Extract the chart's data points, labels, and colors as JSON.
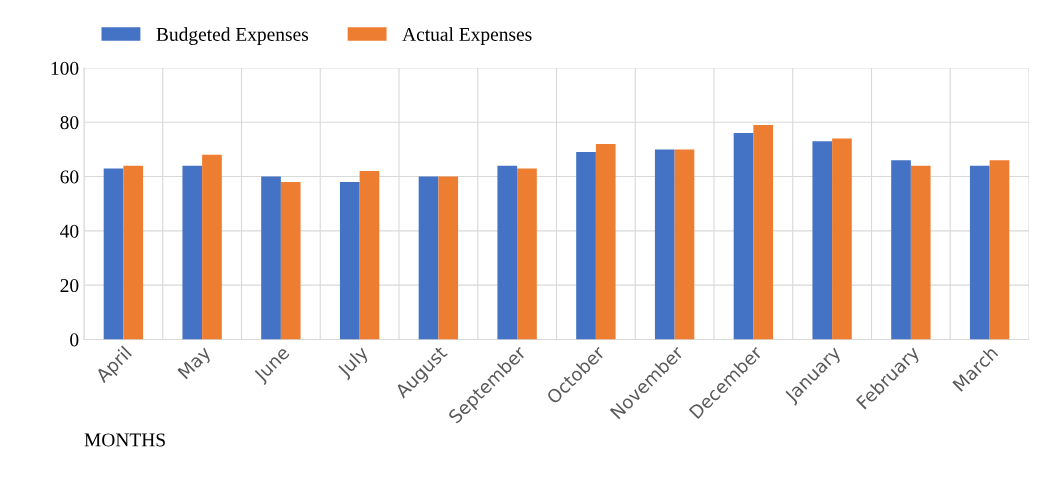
{
  "chart_data": {
    "type": "bar",
    "xlabel": "MONTHS",
    "categories": [
      "April",
      "May",
      "June",
      "July",
      "August",
      "September",
      "October",
      "November",
      "December",
      "January",
      "February",
      "March"
    ],
    "series": [
      {
        "name": "Budgeted Expenses",
        "color": "#4472c4",
        "values": [
          63,
          64,
          60,
          58,
          60,
          64,
          69,
          70,
          76,
          73,
          66,
          64
        ]
      },
      {
        "name": "Actual Expenses",
        "color": "#ed7d31",
        "values": [
          64,
          68,
          58,
          62,
          60,
          63,
          72,
          70,
          79,
          74,
          64,
          66
        ]
      }
    ],
    "ylim": [
      0,
      100
    ],
    "yticks": [
      0,
      20,
      40,
      60,
      80,
      100
    ],
    "grid": true,
    "legend": "top left"
  }
}
